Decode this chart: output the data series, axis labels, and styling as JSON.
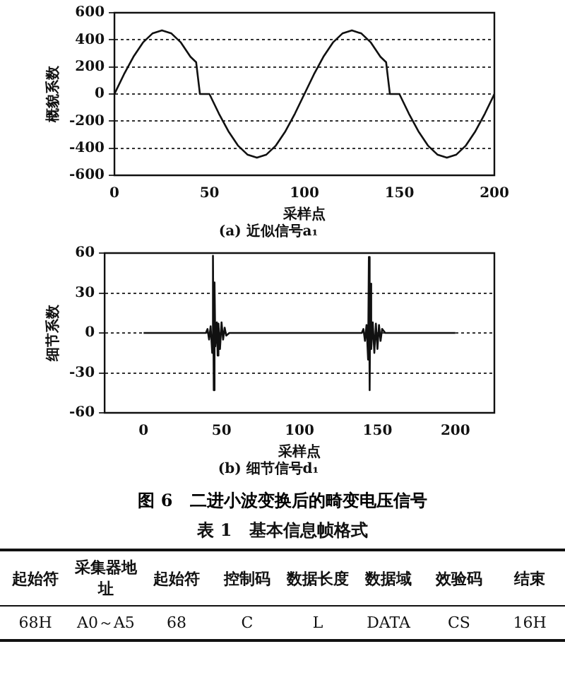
{
  "chart_data": [
    {
      "type": "line",
      "title": "(a) 近似信号a₁",
      "xlabel": "采样点",
      "ylabel": "概貌系数",
      "xlim": [
        0,
        200
      ],
      "ylim": [
        -600,
        600
      ],
      "xticks": [
        0,
        50,
        100,
        150,
        200
      ],
      "yticks": [
        -600,
        -400,
        -200,
        0,
        200,
        400,
        600
      ],
      "grid": "y",
      "legend": false,
      "marker": "none",
      "line_style": "solid",
      "series": [
        {
          "color": "#111111",
          "x": [
            0,
            5,
            10,
            15,
            20,
            25,
            30,
            35,
            40,
            43,
            45,
            50,
            55,
            60,
            65,
            70,
            75,
            80,
            85,
            90,
            95,
            100,
            105,
            110,
            115,
            120,
            125,
            130,
            135,
            140,
            143,
            145,
            150,
            155,
            160,
            165,
            170,
            175,
            180,
            185,
            190,
            195,
            200
          ],
          "values": [
            0,
            145,
            275,
            380,
            447,
            470,
            447,
            380,
            275,
            235,
            0,
            0,
            -145,
            -275,
            -380,
            -447,
            -470,
            -447,
            -380,
            -275,
            -145,
            0,
            145,
            275,
            380,
            447,
            470,
            447,
            380,
            275,
            235,
            0,
            0,
            -145,
            -275,
            -380,
            -447,
            -470,
            -447,
            -380,
            -275,
            -145,
            0
          ]
        }
      ]
    },
    {
      "type": "line",
      "title": "(b) 细节信号d₁",
      "xlabel": "采样点",
      "ylabel": "细节系数",
      "xlim": [
        -25,
        225
      ],
      "ylim": [
        -60,
        60
      ],
      "xticks": [
        0,
        50,
        100,
        150,
        200
      ],
      "yticks": [
        -60,
        -30,
        0,
        30,
        60
      ],
      "grid": "y",
      "legend": false,
      "marker": "none",
      "line_style": "solid",
      "annotations": [
        "图 6　二进小波变换后的畸变电压信号"
      ],
      "series": [
        {
          "color": "#111111",
          "x": [
            0,
            40,
            41,
            42,
            43,
            44,
            44.5,
            45,
            45.5,
            46,
            47,
            47.5,
            48,
            49,
            50,
            51,
            52,
            53,
            55,
            140,
            141,
            142,
            143,
            144,
            144.5,
            145,
            145.5,
            146,
            147,
            148,
            149,
            150,
            151,
            152,
            153,
            155,
            200
          ],
          "values": [
            0,
            0,
            3,
            -5,
            5,
            -15,
            58,
            -43,
            38,
            -10,
            8,
            -17,
            7,
            -12,
            8,
            -5,
            4,
            -2,
            0,
            0,
            3,
            -6,
            6,
            -20,
            57,
            -43,
            37,
            -12,
            8,
            -15,
            7,
            -12,
            6,
            -6,
            3,
            0,
            0
          ]
        }
      ]
    },
    {
      "type": "other",
      "title": "表 1　基本信息帧格式",
      "annotations": [
        "起始符",
        "采集器地址",
        "起始符",
        "控制码",
        "数据长度",
        "数据域",
        "效验码",
        "结束",
        "68H",
        "A0～A5",
        "68",
        "C",
        "L",
        "DATA",
        "CS",
        "16H"
      ]
    }
  ]
}
